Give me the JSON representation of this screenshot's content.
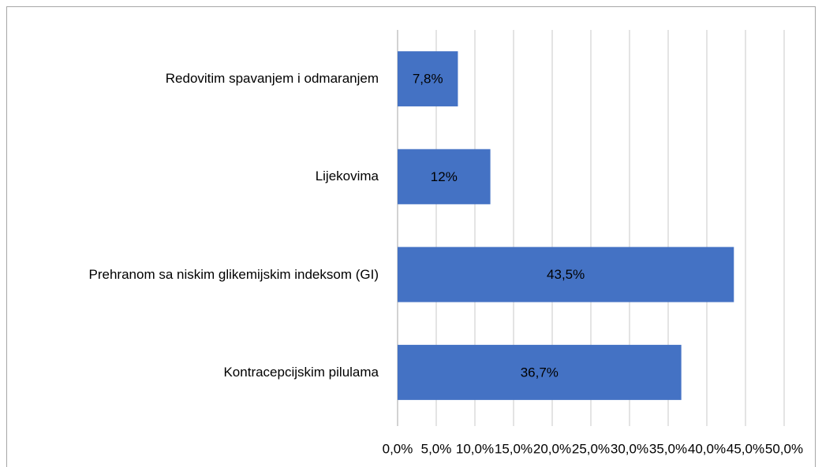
{
  "chart_data": {
    "type": "bar",
    "orientation": "horizontal",
    "categories": [
      "Redovitim spavanjem i odmaranjem",
      "Lijekovima",
      "Prehranom sa niskim  glikemijskim indeksom (GI)",
      "Kontracepcijskim pilulama"
    ],
    "values": [
      7.8,
      12,
      43.5,
      36.7
    ],
    "value_labels": [
      "7,8%",
      "12%",
      "43,5%",
      "36,7%"
    ],
    "color": "#4472c4",
    "xlim": [
      0,
      50
    ],
    "xticks": [
      {
        "value": 0,
        "label": "0,0%"
      },
      {
        "value": 5,
        "label": "5,0%"
      },
      {
        "value": 10,
        "label": "10,0%"
      },
      {
        "value": 15,
        "label": "15,0%"
      },
      {
        "value": 20,
        "label": "20,0%"
      },
      {
        "value": 25,
        "label": "25,0%"
      },
      {
        "value": 30,
        "label": "30,0%"
      },
      {
        "value": 35,
        "label": "35,0%"
      },
      {
        "value": 40,
        "label": "40,0%"
      },
      {
        "value": 45,
        "label": "45,0%"
      },
      {
        "value": 50,
        "label": "50,0%"
      }
    ],
    "grid": true
  }
}
